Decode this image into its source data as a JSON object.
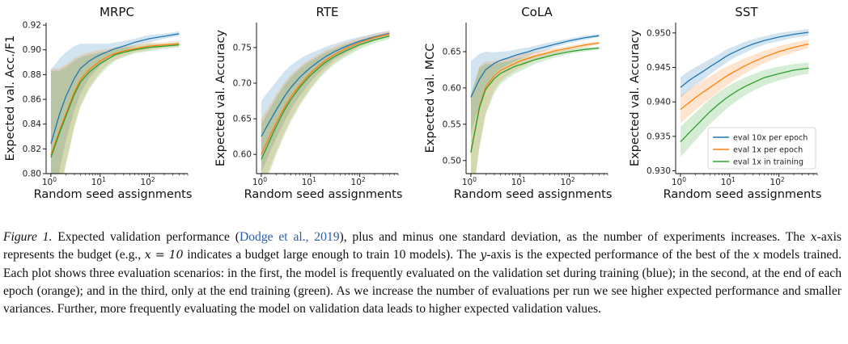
{
  "colors": {
    "eval_10x_per_epoch": "#1f77b4",
    "eval_1x_per_epoch": "#ff7f0e",
    "eval_1x_in_training": "#2ca02c"
  },
  "legend": {
    "placement": "lower-right",
    "panel": "SST",
    "entries": [
      "eval 10x per epoch",
      "eval 1x per epoch",
      "eval 1x in training"
    ]
  },
  "chart_data": [
    {
      "type": "line",
      "title": "MRPC",
      "xlabel": "Random seed assignments",
      "ylabel": "Expected val. Acc./F1",
      "xscale": "log",
      "xlim": [
        0.8,
        600
      ],
      "ylim": [
        0.8,
        0.922
      ],
      "xticks": [
        {
          "v": 1,
          "base": "10",
          "exp": "0"
        },
        {
          "v": 10,
          "base": "10",
          "exp": "1"
        },
        {
          "v": 100,
          "base": "10",
          "exp": "2"
        }
      ],
      "yticks": [
        {
          "v": 0.8,
          "label": "0.80"
        },
        {
          "v": 0.82,
          "label": "0.82"
        },
        {
          "v": 0.84,
          "label": "0.84"
        },
        {
          "v": 0.86,
          "label": "0.86"
        },
        {
          "v": 0.88,
          "label": "0.88"
        },
        {
          "v": 0.9,
          "label": "0.90"
        },
        {
          "v": 0.92,
          "label": "0.92"
        }
      ],
      "x": [
        1,
        1.5,
        2,
        3,
        4,
        6,
        8,
        10,
        15,
        20,
        30,
        50,
        100,
        200,
        400
      ],
      "series": [
        {
          "key": "eval_10x_per_epoch",
          "mean": [
            0.824,
            0.848,
            0.862,
            0.877,
            0.885,
            0.891,
            0.894,
            0.896,
            0.899,
            0.901,
            0.903,
            0.906,
            0.909,
            0.911,
            0.913
          ],
          "std": [
            0.06,
            0.045,
            0.036,
            0.026,
            0.02,
            0.014,
            0.011,
            0.009,
            0.006,
            0.005,
            0.004,
            0.003,
            0.003,
            0.002,
            0.002
          ]
        },
        {
          "key": "eval_1x_per_epoch",
          "mean": [
            0.815,
            0.835,
            0.848,
            0.866,
            0.876,
            0.884,
            0.888,
            0.891,
            0.895,
            0.897,
            0.899,
            0.901,
            0.903,
            0.904,
            0.905
          ],
          "std": [
            0.07,
            0.05,
            0.04,
            0.027,
            0.02,
            0.014,
            0.011,
            0.009,
            0.006,
            0.005,
            0.004,
            0.003,
            0.003,
            0.002,
            0.002
          ]
        },
        {
          "key": "eval_1x_in_training",
          "mean": [
            0.813,
            0.833,
            0.846,
            0.864,
            0.874,
            0.882,
            0.886,
            0.889,
            0.893,
            0.896,
            0.898,
            0.9,
            0.902,
            0.903,
            0.904
          ],
          "std": [
            0.07,
            0.05,
            0.04,
            0.027,
            0.02,
            0.014,
            0.011,
            0.009,
            0.006,
            0.005,
            0.004,
            0.003,
            0.003,
            0.002,
            0.002
          ]
        }
      ]
    },
    {
      "type": "line",
      "title": "RTE",
      "xlabel": "Random seed assignments",
      "ylabel": "Expected val. Accuracy",
      "xscale": "log",
      "xlim": [
        0.8,
        600
      ],
      "ylim": [
        0.573,
        0.785
      ],
      "xticks": [
        {
          "v": 1,
          "base": "10",
          "exp": "0"
        },
        {
          "v": 10,
          "base": "10",
          "exp": "1"
        },
        {
          "v": 100,
          "base": "10",
          "exp": "2"
        }
      ],
      "yticks": [
        {
          "v": 0.6,
          "label": "0.60"
        },
        {
          "v": 0.65,
          "label": "0.65"
        },
        {
          "v": 0.7,
          "label": "0.70"
        },
        {
          "v": 0.75,
          "label": "0.75"
        }
      ],
      "x": [
        1,
        1.5,
        2,
        3,
        4,
        6,
        8,
        10,
        15,
        20,
        30,
        50,
        100,
        200,
        400
      ],
      "series": [
        {
          "key": "eval_10x_per_epoch",
          "mean": [
            0.625,
            0.647,
            0.662,
            0.682,
            0.694,
            0.708,
            0.716,
            0.722,
            0.731,
            0.737,
            0.744,
            0.751,
            0.759,
            0.765,
            0.77
          ],
          "std": [
            0.05,
            0.044,
            0.04,
            0.035,
            0.031,
            0.026,
            0.023,
            0.02,
            0.016,
            0.014,
            0.011,
            0.009,
            0.006,
            0.005,
            0.004
          ]
        },
        {
          "key": "eval_1x_per_epoch",
          "mean": [
            0.6,
            0.626,
            0.644,
            0.667,
            0.681,
            0.697,
            0.707,
            0.714,
            0.725,
            0.732,
            0.74,
            0.748,
            0.757,
            0.764,
            0.769
          ],
          "std": [
            0.05,
            0.044,
            0.04,
            0.035,
            0.031,
            0.026,
            0.023,
            0.02,
            0.016,
            0.014,
            0.011,
            0.009,
            0.006,
            0.005,
            0.004
          ]
        },
        {
          "key": "eval_1x_in_training",
          "mean": [
            0.593,
            0.62,
            0.639,
            0.663,
            0.677,
            0.694,
            0.704,
            0.711,
            0.722,
            0.729,
            0.737,
            0.745,
            0.754,
            0.761,
            0.766
          ],
          "std": [
            0.05,
            0.044,
            0.04,
            0.035,
            0.031,
            0.026,
            0.023,
            0.02,
            0.016,
            0.014,
            0.011,
            0.009,
            0.006,
            0.005,
            0.004
          ]
        }
      ]
    },
    {
      "type": "line",
      "title": "CoLA",
      "xlabel": "Random seed assignments",
      "ylabel": "Expected val. MCC",
      "xscale": "log",
      "xlim": [
        0.8,
        600
      ],
      "ylim": [
        0.482,
        0.69
      ],
      "xticks": [
        {
          "v": 1,
          "base": "10",
          "exp": "0"
        },
        {
          "v": 10,
          "base": "10",
          "exp": "1"
        },
        {
          "v": 100,
          "base": "10",
          "exp": "2"
        }
      ],
      "yticks": [
        {
          "v": 0.5,
          "label": "0.50"
        },
        {
          "v": 0.55,
          "label": "0.55"
        },
        {
          "v": 0.6,
          "label": "0.60"
        },
        {
          "v": 0.65,
          "label": "0.65"
        }
      ],
      "x": [
        1,
        1.5,
        2,
        3,
        4,
        6,
        8,
        10,
        15,
        20,
        30,
        50,
        100,
        200,
        400
      ],
      "series": [
        {
          "key": "eval_10x_per_epoch",
          "mean": [
            0.587,
            0.612,
            0.625,
            0.634,
            0.638,
            0.642,
            0.645,
            0.647,
            0.65,
            0.653,
            0.656,
            0.66,
            0.665,
            0.669,
            0.672
          ],
          "std": [
            0.05,
            0.035,
            0.025,
            0.015,
            0.012,
            0.009,
            0.008,
            0.007,
            0.006,
            0.005,
            0.005,
            0.004,
            0.003,
            0.003,
            0.002
          ]
        },
        {
          "key": "eval_1x_per_epoch",
          "mean": [
            0.511,
            0.575,
            0.601,
            0.617,
            0.624,
            0.63,
            0.634,
            0.637,
            0.641,
            0.644,
            0.647,
            0.651,
            0.655,
            0.659,
            0.662
          ],
          "std": [
            0.08,
            0.055,
            0.035,
            0.02,
            0.015,
            0.011,
            0.01,
            0.009,
            0.007,
            0.006,
            0.005,
            0.004,
            0.003,
            0.003,
            0.002
          ]
        },
        {
          "key": "eval_1x_in_training",
          "mean": [
            0.511,
            0.573,
            0.598,
            0.613,
            0.62,
            0.626,
            0.63,
            0.632,
            0.636,
            0.639,
            0.642,
            0.646,
            0.65,
            0.653,
            0.655
          ],
          "std": [
            0.08,
            0.055,
            0.035,
            0.02,
            0.015,
            0.011,
            0.01,
            0.009,
            0.007,
            0.006,
            0.005,
            0.004,
            0.003,
            0.003,
            0.002
          ]
        }
      ]
    },
    {
      "type": "line",
      "title": "SST",
      "xlabel": "Random seed assignments",
      "ylabel": "Expected val. Accuracy",
      "xscale": "log",
      "xlim": [
        0.8,
        600
      ],
      "ylim": [
        0.9296,
        0.9515
      ],
      "xticks": [
        {
          "v": 1,
          "base": "10",
          "exp": "0"
        },
        {
          "v": 10,
          "base": "10",
          "exp": "1"
        },
        {
          "v": 100,
          "base": "10",
          "exp": "2"
        }
      ],
      "yticks": [
        {
          "v": 0.93,
          "label": "0.930"
        },
        {
          "v": 0.935,
          "label": "0.935"
        },
        {
          "v": 0.94,
          "label": "0.940"
        },
        {
          "v": 0.945,
          "label": "0.945"
        },
        {
          "v": 0.95,
          "label": "0.950"
        }
      ],
      "x": [
        1,
        1.5,
        2,
        3,
        4,
        6,
        8,
        10,
        15,
        20,
        30,
        50,
        100,
        200,
        400
      ],
      "series": [
        {
          "key": "eval_10x_per_epoch",
          "mean": [
            0.9421,
            0.9431,
            0.9437,
            0.9445,
            0.9451,
            0.9459,
            0.9465,
            0.9469,
            0.9475,
            0.9479,
            0.9484,
            0.9489,
            0.9494,
            0.9498,
            0.9501
          ],
          "std": [
            0.0015,
            0.0014,
            0.0013,
            0.0012,
            0.0011,
            0.001,
            0.001,
            0.0009,
            0.0008,
            0.0008,
            0.0007,
            0.0006,
            0.0006,
            0.0005,
            0.0005
          ]
        },
        {
          "key": "eval_1x_per_epoch",
          "mean": [
            0.9389,
            0.9399,
            0.9406,
            0.9415,
            0.9421,
            0.943,
            0.9436,
            0.944,
            0.9447,
            0.9452,
            0.9458,
            0.9465,
            0.9473,
            0.9479,
            0.9484
          ],
          "std": [
            0.002,
            0.0019,
            0.0018,
            0.0017,
            0.0016,
            0.0015,
            0.0014,
            0.0013,
            0.0012,
            0.0011,
            0.001,
            0.0009,
            0.0008,
            0.0007,
            0.0006
          ]
        },
        {
          "key": "eval_1x_in_training",
          "mean": [
            0.9342,
            0.9355,
            0.9364,
            0.9377,
            0.9386,
            0.9397,
            0.9404,
            0.9409,
            0.9417,
            0.9422,
            0.9428,
            0.9435,
            0.9441,
            0.9446,
            0.9449
          ],
          "std": [
            0.0022,
            0.0021,
            0.002,
            0.0019,
            0.0018,
            0.0017,
            0.0016,
            0.0015,
            0.0014,
            0.0013,
            0.0012,
            0.0011,
            0.001,
            0.0009,
            0.0008
          ]
        }
      ]
    }
  ],
  "caption": {
    "label": "Figure 1.",
    "s1": " Expected validation performance (",
    "cite": "Dodge et al., 2019",
    "s2": "), plus and minus one standard deviation, as the number of experiments increases. The ",
    "var_x": "x",
    "s3": "-axis represents the budget (e.g., ",
    "eq": "x = 10",
    "s4": " indicates a budget large enough to train 10 models). The ",
    "var_y": "y",
    "s5": "-axis is the expected performance of the best of the ",
    "var_x2": "x",
    "s6": " models trained. Each plot shows three evaluation scenarios: in the first, the model is frequently evaluated on the validation set during training (blue); in the second, at the end of each epoch (orange); and in the third, only at the end training (green). As we increase the number of evaluations per run we see higher expected performance and smaller variances. Further, more frequently evaluating the model on validation data leads to higher expected validation values."
  }
}
